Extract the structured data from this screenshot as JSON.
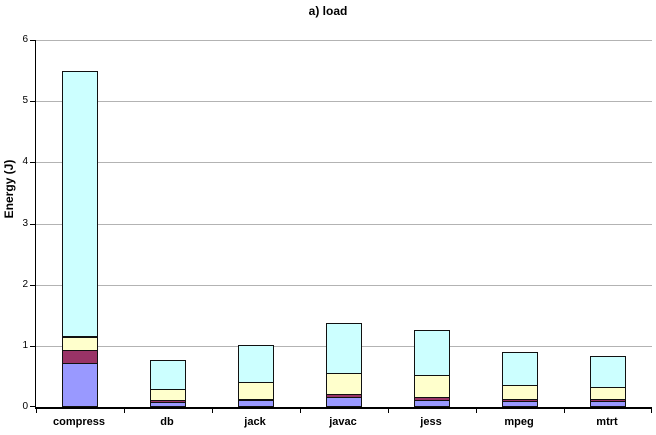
{
  "chart_data": {
    "type": "bar",
    "stacked": true,
    "title": "a) load",
    "xlabel": "",
    "ylabel": "Energy (J)",
    "categories": [
      "compress",
      "db",
      "jack",
      "javac",
      "jess",
      "mpeg",
      "mtrt"
    ],
    "series": [
      {
        "name": "segment-purple",
        "color": "#9999ff",
        "values": [
          0.71,
          0.06,
          0.09,
          0.14,
          0.1,
          0.08,
          0.08
        ]
      },
      {
        "name": "segment-maroon",
        "color": "#993366",
        "values": [
          0.21,
          0.03,
          0.03,
          0.05,
          0.05,
          0.03,
          0.03
        ]
      },
      {
        "name": "segment-yellow",
        "color": "#ffffcc",
        "values": [
          0.22,
          0.19,
          0.27,
          0.35,
          0.36,
          0.23,
          0.2
        ]
      },
      {
        "name": "segment-cyan",
        "color": "#ccffff",
        "values": [
          4.34,
          0.48,
          0.61,
          0.82,
          0.74,
          0.54,
          0.5
        ]
      }
    ],
    "totals": [
      5.48,
      0.76,
      1.0,
      1.36,
      1.25,
      0.88,
      0.81
    ],
    "ylim": [
      0,
      6
    ],
    "yticks": [
      "0",
      "1",
      "2",
      "3",
      "4",
      "5",
      "6"
    ],
    "grid": true,
    "legend": false,
    "colors": {
      "gridline": "#b3b3b3",
      "axis": "#000000",
      "background": "#ffffff",
      "bar_border": "#111111"
    }
  }
}
